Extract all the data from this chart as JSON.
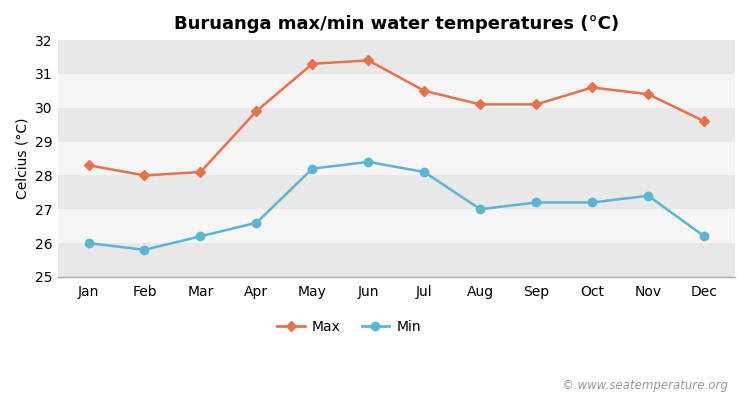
{
  "title": "Buruanga max/min water temperatures (°C)",
  "ylabel": "Celcius (°C)",
  "months": [
    "Jan",
    "Feb",
    "Mar",
    "Apr",
    "May",
    "Jun",
    "Jul",
    "Aug",
    "Sep",
    "Oct",
    "Nov",
    "Dec"
  ],
  "max_temps": [
    28.3,
    28.0,
    28.1,
    29.9,
    31.3,
    31.4,
    30.5,
    30.1,
    30.1,
    30.6,
    30.4,
    29.6
  ],
  "min_temps": [
    26.0,
    25.8,
    26.2,
    26.6,
    28.2,
    28.4,
    28.1,
    27.0,
    27.2,
    27.2,
    27.4,
    26.2
  ],
  "max_color": "#e8714a",
  "min_color": "#5ab7d4",
  "fig_bg_color": "#ffffff",
  "band_light": "#f5f5f5",
  "band_dark": "#e8e8e8",
  "ylim": [
    25,
    32
  ],
  "yticks": [
    25,
    26,
    27,
    28,
    29,
    30,
    31,
    32
  ],
  "legend_labels": [
    "Max",
    "Min"
  ],
  "watermark": "© www.seatemperature.org",
  "title_fontsize": 13,
  "label_fontsize": 10,
  "tick_fontsize": 10,
  "watermark_fontsize": 8.5
}
